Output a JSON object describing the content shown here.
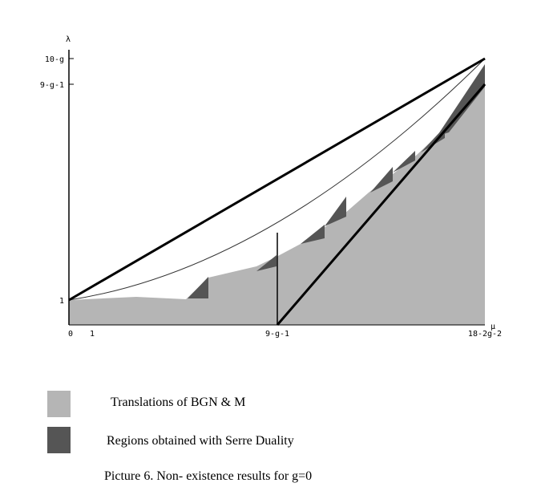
{
  "diagram": {
    "axes": {
      "y_label": "λ",
      "x_label": "μ"
    },
    "y_ticks": [
      "10-g",
      "9-g-1",
      "1"
    ],
    "x_ticks": [
      "0",
      "1",
      "9-g-1",
      "18-2g-2"
    ]
  },
  "legend": [
    {
      "label": "Translations of BGN & M"
    },
    {
      "label": "Regions obtained with Serre Duality"
    }
  ],
  "caption": "Picture 6. Non- existence results for g=0"
}
